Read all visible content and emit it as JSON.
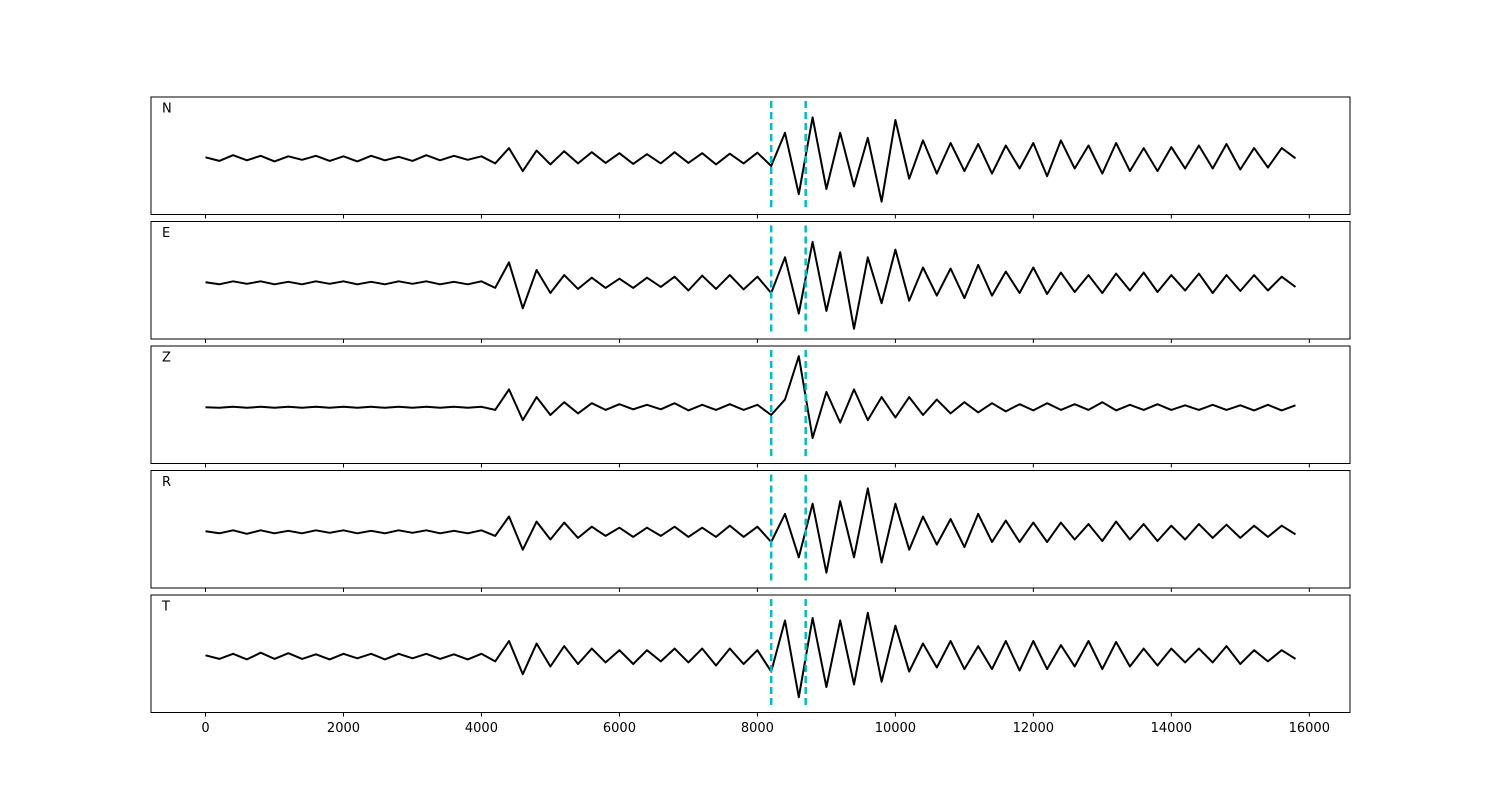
{
  "chart_data": [
    {
      "type": "line",
      "label": "N",
      "color": "#000000",
      "vline_color": "#00bfbf",
      "vlines": [
        8200,
        8700
      ],
      "xlim": [
        -790,
        16590
      ],
      "ylim": [
        -1.1,
        1.2
      ],
      "xticks": [
        0,
        2000,
        4000,
        6000,
        8000,
        10000,
        12000,
        14000,
        16000
      ],
      "xtick_labels": false,
      "x": [
        0,
        200,
        400,
        600,
        800,
        1000,
        1200,
        1400,
        1600,
        1800,
        2000,
        2200,
        2400,
        2600,
        2800,
        3000,
        3200,
        3400,
        3600,
        3800,
        4000,
        4200,
        4400,
        4600,
        4800,
        5000,
        5200,
        5400,
        5600,
        5800,
        6000,
        6200,
        6400,
        6600,
        6800,
        7000,
        7200,
        7400,
        7600,
        7800,
        8000,
        8200,
        8400,
        8600,
        8800,
        9000,
        9200,
        9400,
        9600,
        9800,
        10000,
        10200,
        10400,
        10600,
        10800,
        11000,
        11200,
        11400,
        11600,
        11800,
        12000,
        12200,
        12400,
        12600,
        12800,
        13000,
        13200,
        13400,
        13600,
        13800,
        14000,
        14200,
        14400,
        14600,
        14800,
        15000,
        15200,
        15400,
        15600,
        15800
      ],
      "values": [
        0.02,
        -0.05,
        0.06,
        -0.04,
        0.05,
        -0.06,
        0.04,
        -0.03,
        0.05,
        -0.05,
        0.04,
        -0.06,
        0.05,
        -0.04,
        0.03,
        -0.05,
        0.06,
        -0.04,
        0.05,
        -0.03,
        0.04,
        -0.1,
        0.2,
        -0.25,
        0.15,
        -0.12,
        0.14,
        -0.1,
        0.12,
        -0.09,
        0.1,
        -0.11,
        0.08,
        -0.1,
        0.12,
        -0.09,
        0.1,
        -0.12,
        0.09,
        -0.1,
        0.11,
        -0.15,
        0.5,
        -0.7,
        0.8,
        -0.6,
        0.5,
        -0.55,
        0.4,
        -0.85,
        0.75,
        -0.4,
        0.35,
        -0.3,
        0.3,
        -0.25,
        0.28,
        -0.3,
        0.25,
        -0.2,
        0.3,
        -0.35,
        0.35,
        -0.2,
        0.25,
        -0.3,
        0.3,
        -0.25,
        0.2,
        -0.25,
        0.22,
        -0.2,
        0.25,
        -0.2,
        0.28,
        -0.22,
        0.2,
        -0.18,
        0.2,
        0.0
      ]
    },
    {
      "type": "line",
      "label": "E",
      "color": "#000000",
      "vline_color": "#00bfbf",
      "vlines": [
        8200,
        8700
      ],
      "xlim": [
        -790,
        16590
      ],
      "ylim": [
        -1.1,
        1.2
      ],
      "xticks": [
        0,
        2000,
        4000,
        6000,
        8000,
        10000,
        12000,
        14000,
        16000
      ],
      "xtick_labels": false,
      "x": [
        0,
        200,
        400,
        600,
        800,
        1000,
        1200,
        1400,
        1600,
        1800,
        2000,
        2200,
        2400,
        2600,
        2800,
        3000,
        3200,
        3400,
        3600,
        3800,
        4000,
        4200,
        4400,
        4600,
        4800,
        5000,
        5200,
        5400,
        5600,
        5800,
        6000,
        6200,
        6400,
        6600,
        6800,
        7000,
        7200,
        7400,
        7600,
        7800,
        8000,
        8200,
        8400,
        8600,
        8800,
        9000,
        9200,
        9400,
        9600,
        9800,
        10000,
        10200,
        10400,
        10600,
        10800,
        11000,
        11200,
        11400,
        11600,
        11800,
        12000,
        12200,
        12400,
        12600,
        12800,
        13000,
        13200,
        13400,
        13600,
        13800,
        14000,
        14200,
        14400,
        14600,
        14800,
        15000,
        15200,
        15400,
        15600,
        15800
      ],
      "values": [
        0.01,
        -0.03,
        0.03,
        -0.02,
        0.03,
        -0.03,
        0.02,
        -0.03,
        0.03,
        -0.02,
        0.03,
        -0.03,
        0.02,
        -0.03,
        0.03,
        -0.02,
        0.03,
        -0.03,
        0.02,
        -0.03,
        0.03,
        -0.1,
        0.4,
        -0.5,
        0.25,
        -0.2,
        0.15,
        -0.12,
        0.1,
        -0.1,
        0.08,
        -0.1,
        0.1,
        -0.08,
        0.12,
        -0.15,
        0.14,
        -0.12,
        0.15,
        -0.13,
        0.12,
        -0.2,
        0.5,
        -0.6,
        0.8,
        -0.55,
        0.6,
        -0.9,
        0.5,
        -0.4,
        0.65,
        -0.35,
        0.3,
        -0.25,
        0.28,
        -0.3,
        0.35,
        -0.25,
        0.22,
        -0.2,
        0.3,
        -0.22,
        0.2,
        -0.18,
        0.15,
        -0.2,
        0.18,
        -0.15,
        0.2,
        -0.18,
        0.15,
        -0.15,
        0.18,
        -0.2,
        0.15,
        -0.16,
        0.15,
        -0.15,
        0.12,
        -0.08
      ]
    },
    {
      "type": "line",
      "label": "Z",
      "color": "#000000",
      "vline_color": "#00bfbf",
      "vlines": [
        8200,
        8700
      ],
      "xlim": [
        -790,
        16590
      ],
      "ylim": [
        -1.1,
        1.2
      ],
      "xticks": [
        0,
        2000,
        4000,
        6000,
        8000,
        10000,
        12000,
        14000,
        16000
      ],
      "xtick_labels": false,
      "x": [
        0,
        200,
        400,
        600,
        800,
        1000,
        1200,
        1400,
        1600,
        1800,
        2000,
        2200,
        2400,
        2600,
        2800,
        3000,
        3200,
        3400,
        3600,
        3800,
        4000,
        4200,
        4400,
        4600,
        4800,
        5000,
        5200,
        5400,
        5600,
        5800,
        6000,
        6200,
        6400,
        6600,
        6800,
        7000,
        7200,
        7400,
        7600,
        7800,
        8000,
        8200,
        8400,
        8600,
        8800,
        9000,
        9200,
        9400,
        9600,
        9800,
        10000,
        10200,
        10400,
        10600,
        10800,
        11000,
        11200,
        11400,
        11600,
        11800,
        12000,
        12200,
        12400,
        12600,
        12800,
        13000,
        13200,
        13400,
        13600,
        13800,
        14000,
        14200,
        14400,
        14600,
        14800,
        15000,
        15200,
        15400,
        15600,
        15800
      ],
      "values": [
        0.0,
        -0.01,
        0.01,
        -0.01,
        0.01,
        -0.01,
        0.01,
        -0.01,
        0.01,
        -0.01,
        0.01,
        -0.01,
        0.01,
        -0.01,
        0.01,
        -0.01,
        0.01,
        -0.01,
        0.01,
        -0.01,
        0.01,
        -0.05,
        0.35,
        -0.25,
        0.2,
        -0.15,
        0.1,
        -0.12,
        0.08,
        -0.05,
        0.06,
        -0.04,
        0.05,
        -0.04,
        0.08,
        -0.06,
        0.05,
        -0.05,
        0.06,
        -0.05,
        0.05,
        -0.15,
        0.15,
        1.0,
        -0.6,
        0.3,
        -0.3,
        0.35,
        -0.25,
        0.2,
        -0.2,
        0.2,
        -0.15,
        0.15,
        -0.12,
        0.1,
        -0.1,
        0.08,
        -0.08,
        0.06,
        -0.06,
        0.08,
        -0.05,
        0.06,
        -0.05,
        0.1,
        -0.06,
        0.05,
        -0.05,
        0.06,
        -0.05,
        0.04,
        -0.05,
        0.05,
        -0.05,
        0.04,
        -0.06,
        0.05,
        -0.06,
        0.04
      ]
    },
    {
      "type": "line",
      "label": "R",
      "color": "#000000",
      "vline_color": "#00bfbf",
      "vlines": [
        8200,
        8700
      ],
      "xlim": [
        -790,
        16590
      ],
      "ylim": [
        -1.1,
        1.2
      ],
      "xticks": [
        0,
        2000,
        4000,
        6000,
        8000,
        10000,
        12000,
        14000,
        16000
      ],
      "xtick_labels": false,
      "x": [
        0,
        200,
        400,
        600,
        800,
        1000,
        1200,
        1400,
        1600,
        1800,
        2000,
        2200,
        2400,
        2600,
        2800,
        3000,
        3200,
        3400,
        3600,
        3800,
        4000,
        4200,
        4400,
        4600,
        4800,
        5000,
        5200,
        5400,
        5600,
        5800,
        6000,
        6200,
        6400,
        6600,
        6800,
        7000,
        7200,
        7400,
        7600,
        7800,
        8000,
        8200,
        8400,
        8600,
        8800,
        9000,
        9200,
        9400,
        9600,
        9800,
        10000,
        10200,
        10400,
        10600,
        10800,
        11000,
        11200,
        11400,
        11600,
        11800,
        12000,
        12200,
        12400,
        12600,
        12800,
        13000,
        13200,
        13400,
        13600,
        13800,
        14000,
        14200,
        14400,
        14600,
        14800,
        15000,
        15200,
        15400,
        15600,
        15800
      ],
      "values": [
        0.01,
        -0.03,
        0.03,
        -0.04,
        0.03,
        -0.03,
        0.02,
        -0.03,
        0.03,
        -0.02,
        0.03,
        -0.03,
        0.02,
        -0.03,
        0.03,
        -0.02,
        0.03,
        -0.03,
        0.02,
        -0.03,
        0.03,
        -0.08,
        0.3,
        -0.35,
        0.2,
        -0.15,
        0.18,
        -0.12,
        0.1,
        -0.08,
        0.08,
        -0.1,
        0.08,
        -0.08,
        0.1,
        -0.1,
        0.08,
        -0.1,
        0.12,
        -0.1,
        0.1,
        -0.2,
        0.35,
        -0.5,
        0.55,
        -0.8,
        0.6,
        -0.5,
        0.85,
        -0.6,
        0.55,
        -0.35,
        0.3,
        -0.25,
        0.25,
        -0.3,
        0.35,
        -0.2,
        0.22,
        -0.2,
        0.18,
        -0.2,
        0.18,
        -0.15,
        0.15,
        -0.18,
        0.2,
        -0.15,
        0.15,
        -0.18,
        0.12,
        -0.15,
        0.15,
        -0.12,
        0.14,
        -0.12,
        0.12,
        -0.1,
        0.12,
        -0.05
      ]
    },
    {
      "type": "line",
      "label": "T",
      "color": "#000000",
      "vline_color": "#00bfbf",
      "vlines": [
        8200,
        8700
      ],
      "xlim": [
        -790,
        16590
      ],
      "ylim": [
        -1.1,
        1.2
      ],
      "xticks": [
        0,
        2000,
        4000,
        6000,
        8000,
        10000,
        12000,
        14000,
        16000
      ],
      "xtick_labels": true,
      "x": [
        0,
        200,
        400,
        600,
        800,
        1000,
        1200,
        1400,
        1600,
        1800,
        2000,
        2200,
        2400,
        2600,
        2800,
        3000,
        3200,
        3400,
        3600,
        3800,
        4000,
        4200,
        4400,
        4600,
        4800,
        5000,
        5200,
        5400,
        5600,
        5800,
        6000,
        6200,
        6400,
        6600,
        6800,
        7000,
        7200,
        7400,
        7600,
        7800,
        8000,
        8200,
        8400,
        8600,
        8800,
        9000,
        9200,
        9400,
        9600,
        9800,
        10000,
        10200,
        10400,
        10600,
        10800,
        11000,
        11200,
        11400,
        11600,
        11800,
        12000,
        12200,
        12400,
        12600,
        12800,
        13000,
        13200,
        13400,
        13600,
        13800,
        14000,
        14200,
        14400,
        14600,
        14800,
        15000,
        15200,
        15400,
        15600,
        15800
      ],
      "values": [
        0.02,
        -0.05,
        0.05,
        -0.06,
        0.07,
        -0.05,
        0.06,
        -0.05,
        0.04,
        -0.06,
        0.05,
        -0.04,
        0.05,
        -0.06,
        0.05,
        -0.04,
        0.05,
        -0.05,
        0.04,
        -0.06,
        0.05,
        -0.1,
        0.3,
        -0.35,
        0.25,
        -0.2,
        0.2,
        -0.15,
        0.15,
        -0.12,
        0.12,
        -0.15,
        0.12,
        -0.1,
        0.15,
        -0.12,
        0.15,
        -0.18,
        0.15,
        -0.15,
        0.12,
        -0.3,
        0.7,
        -0.8,
        0.75,
        -0.6,
        0.7,
        -0.55,
        0.85,
        -0.5,
        0.6,
        -0.3,
        0.25,
        -0.22,
        0.3,
        -0.25,
        0.2,
        -0.25,
        0.3,
        -0.28,
        0.3,
        -0.25,
        0.22,
        -0.2,
        0.3,
        -0.25,
        0.28,
        -0.2,
        0.15,
        -0.18,
        0.15,
        -0.12,
        0.15,
        -0.12,
        0.2,
        -0.15,
        0.12,
        -0.1,
        0.12,
        -0.05
      ]
    }
  ]
}
